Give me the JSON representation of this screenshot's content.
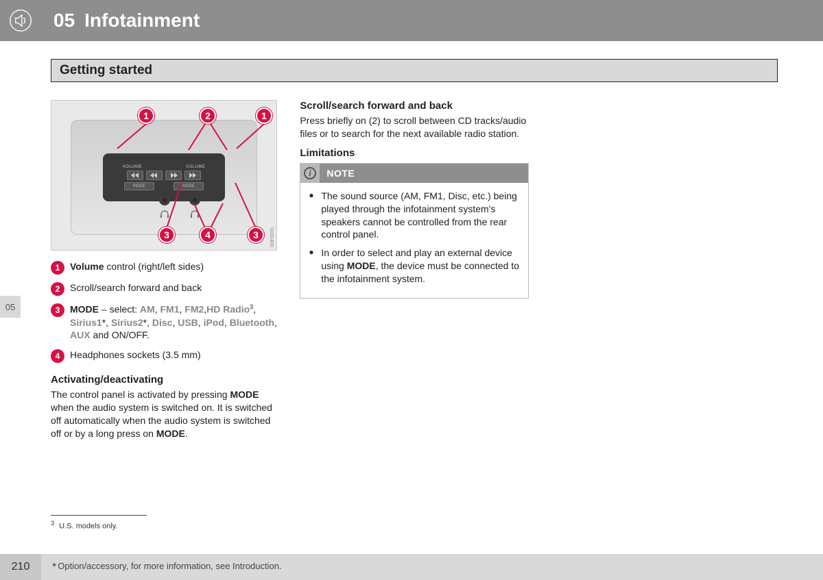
{
  "header": {
    "chapter_no": "05",
    "title": "Infotainment"
  },
  "section": {
    "title": "Getting started"
  },
  "side_tab": "05",
  "figure": {
    "labels": {
      "volume": "VOLUME",
      "mode": "MODE"
    },
    "callouts": {
      "c1a": "1",
      "c2": "2",
      "c1b": "1",
      "c3a": "3",
      "c4": "4",
      "c3b": "3"
    },
    "code": "G031400"
  },
  "legend": [
    {
      "num": "1",
      "html": "<b>Volume</b> control (right/left sides)"
    },
    {
      "num": "2",
      "html": "Scroll/search forward and back"
    },
    {
      "num": "3",
      "html": "<b>MODE</b> – select: <span class='kw'>AM</span>, <span class='kw'>FM1</span>, <span class='kw'>FM2</span>,<span class='kw'>HD Radio</span><sup>3</sup>, <span class='kw'>Sirius1</span>*, <span class='kw'>Sirius2</span>*, <span class='kw'>Disc</span>, <span class='kw'>USB</span>, <span class='kw'>iPod</span>, <span class='kw'>Bluetooth</span>, <span class='kw'>AUX</span> and ON/OFF."
    },
    {
      "num": "4",
      "html": "Headphones sockets (3.5 mm)"
    }
  ],
  "activating": {
    "heading": "Activating/deactivating",
    "body": "The control panel is activated by pressing <b>MODE</b> when the audio system is switched on. It is switched off automatically when the audio system is switched off or by a long press on <b>MODE</b>."
  },
  "scroll": {
    "heading": "Scroll/search forward and back",
    "body": "Press briefly on (2) to scroll between CD tracks/audio files or to search for the next available radio station."
  },
  "limitations": {
    "heading": "Limitations",
    "note_label": "NOTE",
    "items": [
      "The sound source (<span class='kw'>AM</span>, <span class='kw'>FM1</span>, <span class='kw'>Disc</span>, etc.) being played through the infotainment system's speakers cannot be controlled from the rear control panel.",
      "In order to select and play an external device using <b>MODE</b>, the device must be connected to the infotainment system."
    ]
  },
  "footnote": {
    "marker": "3",
    "text": "U.S. models only."
  },
  "footer": {
    "page": "210",
    "text": "Option/accessory, for more information, see Introduction."
  },
  "colors": {
    "header_bg": "#8e8e8e",
    "accent": "#d31245",
    "light_bg": "#d9d9d9"
  }
}
